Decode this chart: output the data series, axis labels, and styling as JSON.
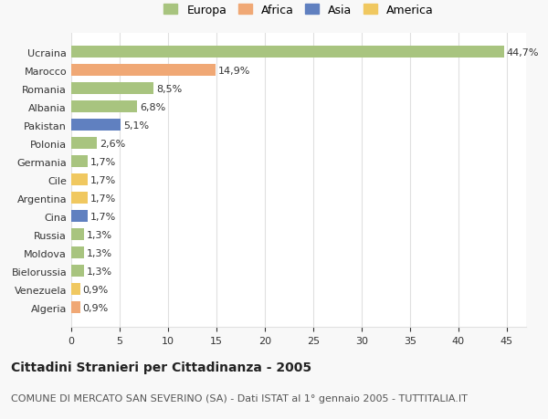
{
  "countries": [
    "Ucraina",
    "Marocco",
    "Romania",
    "Albania",
    "Pakistan",
    "Polonia",
    "Germania",
    "Cile",
    "Argentina",
    "Cina",
    "Russia",
    "Moldova",
    "Bielorussia",
    "Venezuela",
    "Algeria"
  ],
  "values": [
    44.7,
    14.9,
    8.5,
    6.8,
    5.1,
    2.6,
    1.7,
    1.7,
    1.7,
    1.7,
    1.3,
    1.3,
    1.3,
    0.9,
    0.9
  ],
  "labels": [
    "44,7%",
    "14,9%",
    "8,5%",
    "6,8%",
    "5,1%",
    "2,6%",
    "1,7%",
    "1,7%",
    "1,7%",
    "1,7%",
    "1,3%",
    "1,3%",
    "1,3%",
    "0,9%",
    "0,9%"
  ],
  "continents": [
    "Europa",
    "Africa",
    "Europa",
    "Europa",
    "Asia",
    "Europa",
    "Europa",
    "America",
    "America",
    "Asia",
    "Europa",
    "Europa",
    "Europa",
    "America",
    "Africa"
  ],
  "continent_colors": {
    "Europa": "#a8c47f",
    "Africa": "#f0a875",
    "Asia": "#6080c0",
    "America": "#f0c860"
  },
  "legend_order": [
    "Europa",
    "Africa",
    "Asia",
    "America"
  ],
  "xlim": [
    0,
    47
  ],
  "xticks": [
    0,
    5,
    10,
    15,
    20,
    25,
    30,
    35,
    40,
    45
  ],
  "title": "Cittadini Stranieri per Cittadinanza - 2005",
  "subtitle": "COMUNE DI MERCATO SAN SEVERINO (SA) - Dati ISTAT al 1° gennaio 2005 - TUTTITALIA.IT",
  "bg_color": "#f8f8f8",
  "plot_bg_color": "#ffffff",
  "grid_color": "#e0e0e0",
  "bar_height": 0.65,
  "label_fontsize": 8,
  "title_fontsize": 10,
  "subtitle_fontsize": 8
}
